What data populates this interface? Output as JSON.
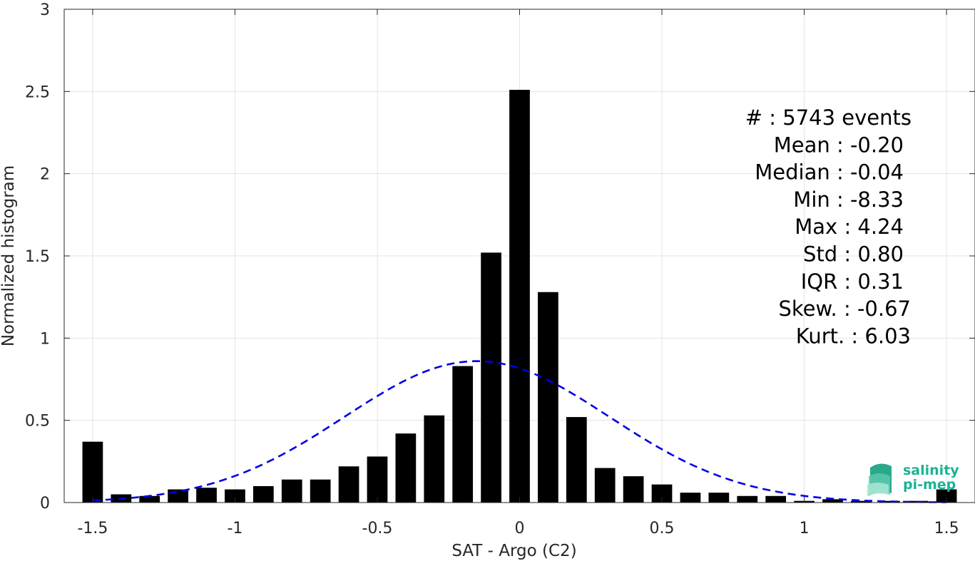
{
  "chart_data": {
    "type": "bar",
    "xlabel": "SAT - Argo (C2)",
    "ylabel": "Normalized histogram",
    "xlim": [
      -1.6,
      1.6
    ],
    "ylim": [
      0,
      3
    ],
    "xticks": [
      -1.5,
      -1,
      -0.5,
      0,
      0.5,
      1,
      1.5
    ],
    "xtick_labels": [
      "-1.5",
      "-1",
      "-0.5",
      "0",
      "0.5",
      "1",
      "1.5"
    ],
    "yticks": [
      0,
      0.5,
      1,
      1.5,
      2,
      2.5,
      3
    ],
    "ytick_labels": [
      "0",
      "0.5",
      "1",
      "1.5",
      "2",
      "2.5",
      "3"
    ],
    "grid": true,
    "bar_color": "#000000",
    "bins": [
      {
        "x": -1.5,
        "value": 0.37
      },
      {
        "x": -1.4,
        "value": 0.05
      },
      {
        "x": -1.3,
        "value": 0.04
      },
      {
        "x": -1.2,
        "value": 0.08
      },
      {
        "x": -1.1,
        "value": 0.09
      },
      {
        "x": -1.0,
        "value": 0.08
      },
      {
        "x": -0.9,
        "value": 0.1
      },
      {
        "x": -0.8,
        "value": 0.14
      },
      {
        "x": -0.7,
        "value": 0.14
      },
      {
        "x": -0.6,
        "value": 0.22
      },
      {
        "x": -0.5,
        "value": 0.28
      },
      {
        "x": -0.4,
        "value": 0.42
      },
      {
        "x": -0.3,
        "value": 0.53
      },
      {
        "x": -0.2,
        "value": 0.83
      },
      {
        "x": -0.1,
        "value": 1.52
      },
      {
        "x": 0.0,
        "value": 2.51
      },
      {
        "x": 0.1,
        "value": 1.28
      },
      {
        "x": 0.2,
        "value": 0.52
      },
      {
        "x": 0.3,
        "value": 0.21
      },
      {
        "x": 0.4,
        "value": 0.16
      },
      {
        "x": 0.5,
        "value": 0.11
      },
      {
        "x": 0.6,
        "value": 0.06
      },
      {
        "x": 0.7,
        "value": 0.06
      },
      {
        "x": 0.8,
        "value": 0.04
      },
      {
        "x": 0.9,
        "value": 0.04
      },
      {
        "x": 1.0,
        "value": 0.01
      },
      {
        "x": 1.1,
        "value": 0.02
      },
      {
        "x": 1.2,
        "value": 0.01
      },
      {
        "x": 1.3,
        "value": 0.01
      },
      {
        "x": 1.4,
        "value": 0.01
      },
      {
        "x": 1.5,
        "value": 0.08
      }
    ],
    "fit_curve": {
      "type": "gaussian",
      "style": "dashed",
      "color": "#0000e6",
      "mean": -0.15,
      "sigma": 0.465,
      "peak": 0.86,
      "x_range": [
        -1.5,
        1.5
      ]
    },
    "stats": [
      "#  : 5743 events",
      "Mean : -0.20",
      "Median : -0.04",
      "Min : -8.33",
      "Max : 4.24",
      "Std : 0.80",
      "IQR : 0.31",
      "Skew. : -0.67",
      "Kurt. : 6.03"
    ]
  },
  "logo": {
    "line1": "salinity",
    "line2": "pi-mep",
    "color": "#1ab394"
  }
}
